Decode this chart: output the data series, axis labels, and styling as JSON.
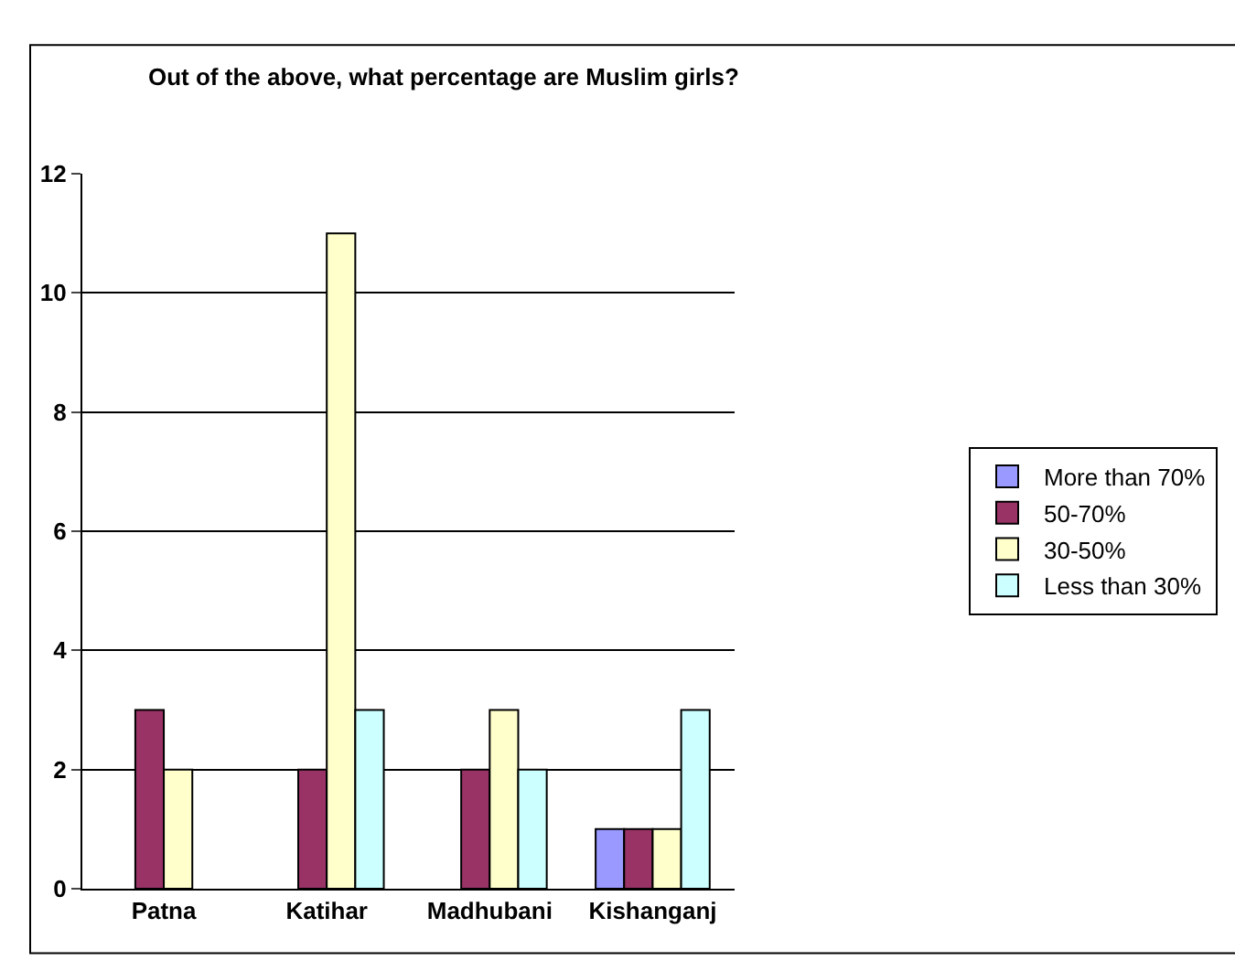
{
  "chart_data": {
    "type": "bar",
    "title": "Out of the above, what percentage are Muslim girls?",
    "categories": [
      "Patna",
      "Katihar",
      "Madhubani",
      "Kishanganj"
    ],
    "series": [
      {
        "name": "More than 70%",
        "color": "#9999ff",
        "values": [
          null,
          null,
          null,
          1
        ]
      },
      {
        "name": "50-70%",
        "color": "#993366",
        "values": [
          3,
          2,
          2,
          1
        ]
      },
      {
        "name": "30-50%",
        "color": "#ffffcc",
        "values": [
          2,
          11,
          3,
          1
        ]
      },
      {
        "name": "Less than 30%",
        "color": "#ccffff",
        "values": [
          null,
          3,
          2,
          3
        ]
      }
    ],
    "ylim": [
      0,
      12
    ],
    "yticks": [
      0,
      2,
      4,
      6,
      8,
      10,
      12
    ],
    "grid": "y",
    "legend": "right"
  }
}
